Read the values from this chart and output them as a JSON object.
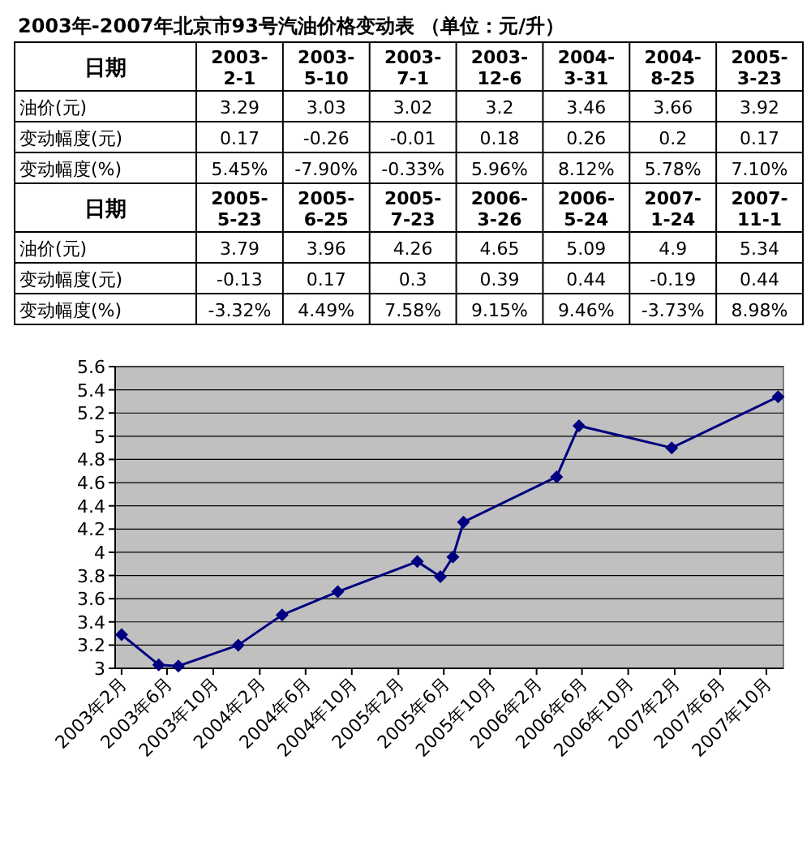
{
  "chart_data": [
    {
      "type": "other",
      "title": "2003年-2007年北京市93号汽油价格变动表 （单位：元/升）",
      "xlabel": "日期",
      "data_labels": true,
      "categories": [
        "2003-2-1",
        "2003-5-10",
        "2003-7-1",
        "2003-12-6",
        "2004-3-31",
        "2004-8-25",
        "2005-3-23"
      ],
      "series": [
        {
          "name": "油价(元)",
          "values": [
            3.29,
            3.03,
            3.02,
            3.2,
            3.46,
            3.66,
            3.92
          ]
        },
        {
          "name": "变动幅度(元)",
          "values": [
            0.17,
            -0.26,
            -0.01,
            0.18,
            0.26,
            0.2,
            0.17
          ]
        },
        {
          "name": "变动幅度(%)",
          "values": [
            5.45,
            -7.9,
            -0.33,
            5.96,
            8.12,
            5.78,
            7.1
          ],
          "value_labels": [
            "5.45%",
            "-7.90%",
            "-0.33%",
            "5.96%",
            "8.12%",
            "5.78%",
            "7.10%"
          ]
        }
      ]
    },
    {
      "type": "other",
      "xlabel": "日期",
      "data_labels": true,
      "categories": [
        "2005-5-23",
        "2005-6-25",
        "2005-7-23",
        "2006-3-26",
        "2006-5-24",
        "2007-1-24",
        "2007-11-1"
      ],
      "series": [
        {
          "name": "油价(元)",
          "values": [
            3.79,
            3.96,
            4.26,
            4.65,
            5.09,
            4.9,
            5.34
          ]
        },
        {
          "name": "变动幅度(元)",
          "values": [
            -0.13,
            0.17,
            0.3,
            0.39,
            0.44,
            -0.19,
            0.44
          ]
        },
        {
          "name": "变动幅度(%)",
          "values": [
            -3.32,
            4.49,
            7.58,
            9.15,
            9.46,
            -3.73,
            8.98
          ],
          "value_labels": [
            "-3.32%",
            "4.49%",
            "7.58%",
            "9.15%",
            "9.46%",
            "-3.73%",
            "8.98%"
          ]
        }
      ]
    },
    {
      "type": "line",
      "x": [
        "2003-02-01",
        "2003-05-10",
        "2003-07-01",
        "2003-12-06",
        "2004-03-31",
        "2004-08-25",
        "2005-03-23",
        "2005-05-23",
        "2005-06-25",
        "2005-07-23",
        "2006-03-26",
        "2006-05-24",
        "2007-01-24",
        "2007-11-01"
      ],
      "series": [
        {
          "color": "#000080",
          "values": [
            3.29,
            3.03,
            3.02,
            3.2,
            3.46,
            3.66,
            3.92,
            3.79,
            3.96,
            4.26,
            4.65,
            5.09,
            4.9,
            5.34
          ]
        }
      ],
      "xlim": [
        "2003-01-15",
        "2007-11-15"
      ],
      "xticks": [
        {
          "value": "2003-02-01",
          "label": "2003年2月"
        },
        {
          "value": "2003-06-01",
          "label": "2003年6月"
        },
        {
          "value": "2003-10-01",
          "label": "2003年10月"
        },
        {
          "value": "2004-02-01",
          "label": "2004年2月"
        },
        {
          "value": "2004-06-01",
          "label": "2004年6月"
        },
        {
          "value": "2004-10-01",
          "label": "2004年10月"
        },
        {
          "value": "2005-02-01",
          "label": "2005年2月"
        },
        {
          "value": "2005-06-01",
          "label": "2005年6月"
        },
        {
          "value": "2005-10-01",
          "label": "2005年10月"
        },
        {
          "value": "2006-02-01",
          "label": "2006年2月"
        },
        {
          "value": "2006-06-01",
          "label": "2006年6月"
        },
        {
          "value": "2006-10-01",
          "label": "2006年10月"
        },
        {
          "value": "2007-02-01",
          "label": "2007年2月"
        },
        {
          "value": "2007-06-01",
          "label": "2007年6月"
        },
        {
          "value": "2007-10-01",
          "label": "2007年10月"
        }
      ],
      "ylim": [
        3,
        5.6
      ],
      "yticks": [
        3,
        3.2,
        3.4,
        3.6,
        3.8,
        4,
        4.2,
        4.4,
        4.6,
        4.8,
        5,
        5.2,
        5.4,
        5.6
      ],
      "grid": "y",
      "marker": "diamond"
    }
  ]
}
